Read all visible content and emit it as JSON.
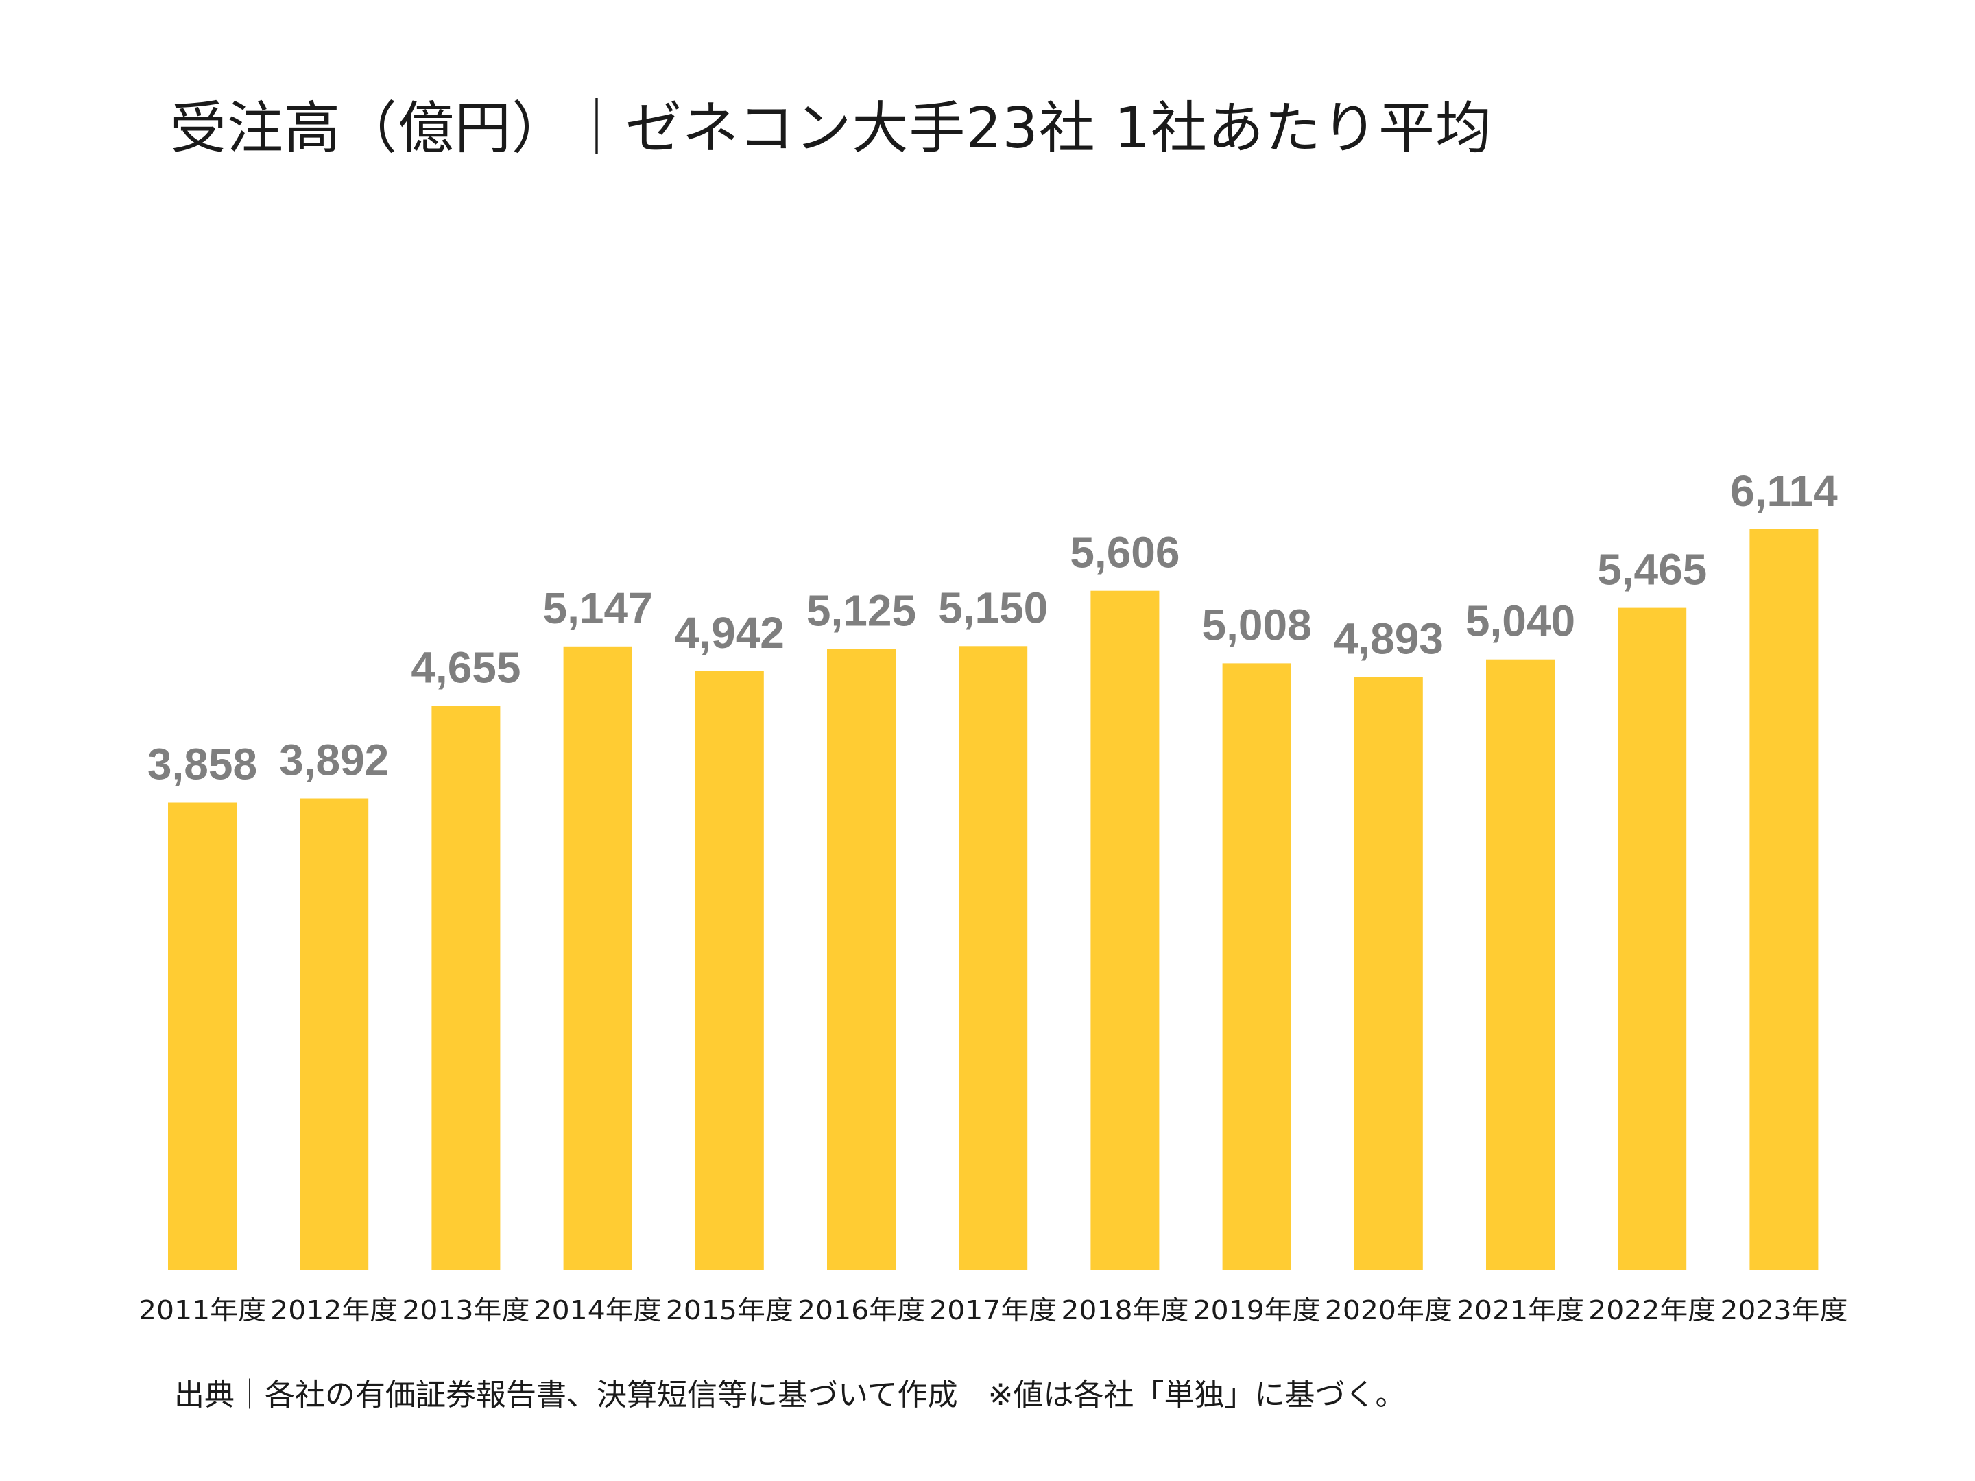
{
  "chart_data": {
    "type": "bar",
    "title": "受注高（億円）｜ゼネコン大手23社 1社あたり平均",
    "categories": [
      "2011年度",
      "2012年度",
      "2013年度",
      "2014年度",
      "2015年度",
      "2016年度",
      "2017年度",
      "2018年度",
      "2019年度",
      "2020年度",
      "2021年度",
      "2022年度",
      "2023年度"
    ],
    "values": [
      3858,
      3892,
      4655,
      5147,
      4942,
      5125,
      5150,
      5606,
      5008,
      4893,
      5040,
      5465,
      6114
    ],
    "value_labels": [
      "3,858",
      "3,892",
      "4,655",
      "5,147",
      "4,942",
      "5,125",
      "5,150",
      "5,606",
      "5,008",
      "4,893",
      "5,040",
      "5,465",
      "6,114"
    ],
    "xlabel": "",
    "ylabel": "",
    "ylim": [
      0,
      6114
    ],
    "grid": false,
    "legend": "none",
    "bar_color": "#FFCC33",
    "label_color": "#7F7F7F"
  },
  "source_note": "出典｜各社の有価証券報告書、決算短信等に基づいて作成　※値は各社「単独」に基づく。"
}
